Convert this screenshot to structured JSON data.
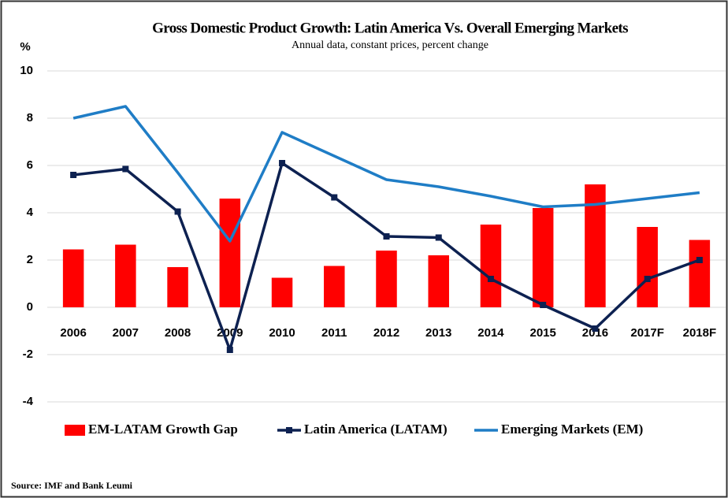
{
  "chart_data": {
    "type": "combo",
    "title": "Gross Domestic Product Growth: Latin America Vs. Overall Emerging Markets",
    "subtitle": "Annual data, constant prices, percent change",
    "y_label": "%",
    "source": "Source: IMF and Bank Leumi",
    "categories": [
      "2006",
      "2007",
      "2008",
      "2009",
      "2010",
      "2011",
      "2012",
      "2013",
      "2014",
      "2015",
      "2016",
      "2017F",
      "2018F"
    ],
    "series": [
      {
        "name": "EM-LATAM Growth Gap",
        "type": "bar",
        "color": "#ff0000",
        "values": [
          2.45,
          2.65,
          1.7,
          4.6,
          1.25,
          1.75,
          2.4,
          2.2,
          3.5,
          4.2,
          5.2,
          3.4,
          2.85
        ]
      },
      {
        "name": "Latin America (LATAM)",
        "type": "line",
        "marker": "square",
        "color": "#0d2151",
        "values": [
          5.6,
          5.85,
          4.05,
          -1.8,
          6.1,
          4.65,
          3.0,
          2.95,
          1.2,
          0.1,
          -0.9,
          1.2,
          2.0
        ]
      },
      {
        "name": "Emerging Markets (EM)",
        "type": "line",
        "color": "#1f7dc6",
        "values": [
          8.0,
          8.5,
          5.7,
          2.8,
          7.4,
          6.4,
          5.4,
          5.1,
          4.7,
          4.25,
          4.35,
          4.6,
          4.85
        ]
      }
    ],
    "ylim": [
      -4,
      10
    ],
    "yticks": [
      -4,
      -2,
      0,
      2,
      4,
      6,
      8,
      10
    ],
    "grid": true,
    "legend": "bottom"
  }
}
